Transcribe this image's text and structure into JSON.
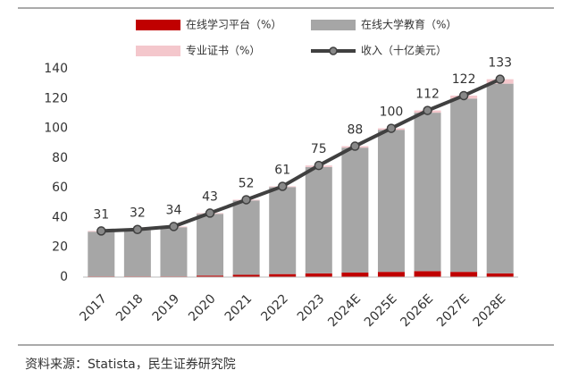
{
  "chart_data": {
    "type": "bar",
    "stacked": true,
    "categories": [
      "2017",
      "2018",
      "2019",
      "2020",
      "2021",
      "2022",
      "2023",
      "2024E",
      "2025E",
      "2026E",
      "2027E",
      "2028E"
    ],
    "series": [
      {
        "name": "在线学习平台（%）",
        "color": "#c00000",
        "values": [
          0.5,
          0.5,
          0.5,
          1,
          1.5,
          2,
          2.5,
          3,
          3.5,
          4,
          3.5,
          2.5
        ]
      },
      {
        "name": "在线大学教育（%）",
        "color": "#a6a6a6",
        "values": [
          30,
          31,
          33,
          41.5,
          50,
          58.5,
          71.5,
          84,
          95.5,
          106.5,
          116.5,
          127.5
        ]
      },
      {
        "name": "专业证书（%）",
        "color": "#f4c7cc",
        "values": [
          0.5,
          0.5,
          0.5,
          0.5,
          0.5,
          0.5,
          1,
          1,
          1,
          1.5,
          2,
          3
        ]
      },
      {
        "name": "收入（十亿美元）",
        "type": "line",
        "color": "#404040",
        "values": [
          31,
          32,
          34,
          43,
          52,
          61,
          75,
          88,
          100,
          112,
          122,
          133
        ]
      }
    ],
    "ylim": [
      0,
      140
    ],
    "yticks": [
      0,
      20,
      40,
      60,
      80,
      100,
      120,
      140
    ],
    "grid": false,
    "source": "资料来源：Statista，民生证券研究院"
  }
}
